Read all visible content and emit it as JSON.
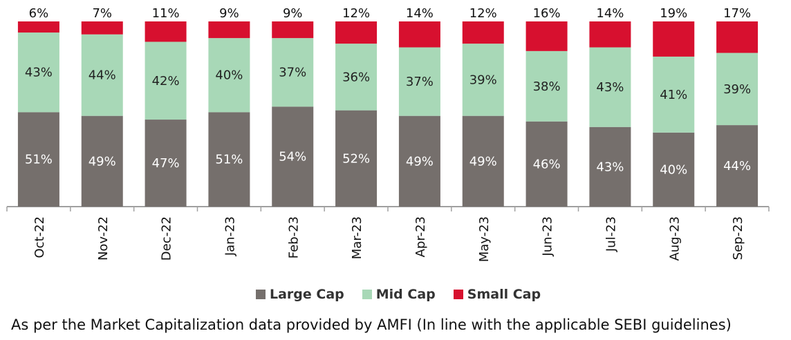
{
  "chart_data": {
    "type": "bar",
    "stacked": true,
    "percent_stacked": true,
    "categories": [
      "Oct-22",
      "Nov-22",
      "Dec-22",
      "Jan-23",
      "Feb-23",
      "Mar-23",
      "Apr-23",
      "May-23",
      "Jun-23",
      "Jul-23",
      "Aug-23",
      "Sep-23"
    ],
    "series": [
      {
        "name": "Large Cap",
        "color": "#756f6c",
        "values": [
          51,
          49,
          47,
          51,
          54,
          52,
          49,
          49,
          46,
          43,
          40,
          44
        ]
      },
      {
        "name": "Mid Cap",
        "color": "#a8d8b7",
        "values": [
          43,
          44,
          42,
          40,
          37,
          36,
          37,
          39,
          38,
          43,
          41,
          39
        ]
      },
      {
        "name": "Small Cap",
        "color": "#d7102f",
        "values": [
          6,
          7,
          11,
          9,
          9,
          12,
          14,
          12,
          16,
          14,
          19,
          17
        ]
      }
    ],
    "value_suffix": "%",
    "legend_position": "bottom",
    "grid": false
  },
  "footnote": "As per the Market Capitalization data provided by AMFI (In line with the applicable SEBI guidelines)"
}
